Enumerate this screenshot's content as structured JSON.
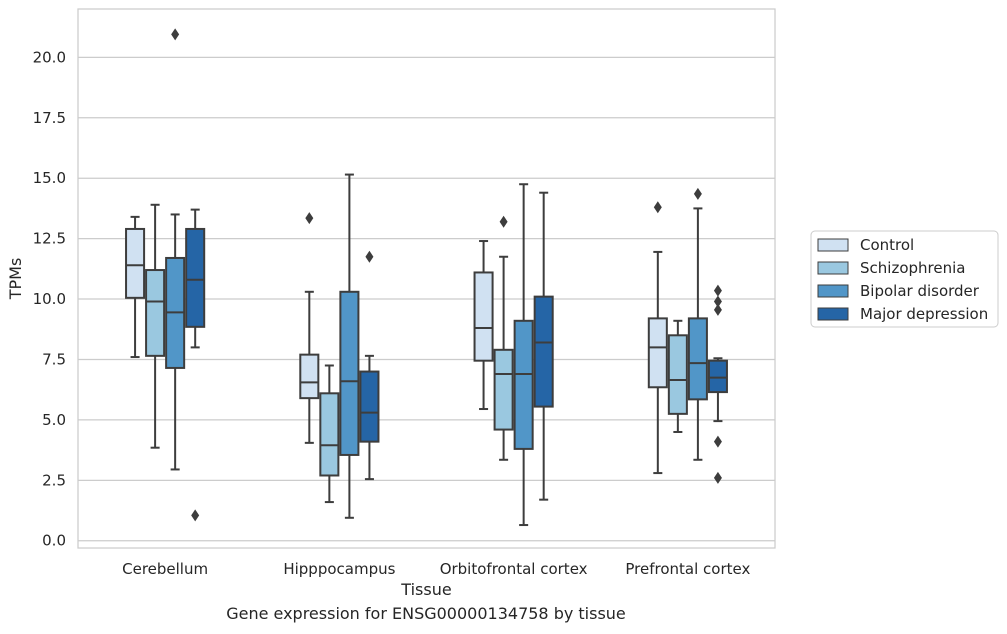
{
  "chart_data": {
    "type": "box",
    "categories": [
      "Cerebellum",
      "Hipppocampus",
      "Orbitofrontal cortex",
      "Prefrontal cortex"
    ],
    "xlabel": "Tissue",
    "ylabel": "TPMs",
    "ylim": [
      -0.3,
      22
    ],
    "yticks": [
      0.0,
      2.5,
      5.0,
      7.5,
      10.0,
      12.5,
      15.0,
      17.5,
      20.0
    ],
    "ytick_labels": [
      "0.0",
      "2.5",
      "5.0",
      "7.5",
      "10.0",
      "12.5",
      "15.0",
      "17.5",
      "20.0"
    ],
    "grid": "horizontal",
    "legend_position": "right",
    "caption": "Gene expression for ENSG00000134758 by tissue",
    "series": [
      {
        "name": "Control",
        "color": "#d0e1f2",
        "boxes": [
          {
            "q1": 10.05,
            "median": 11.4,
            "q3": 12.9,
            "whislo": 7.6,
            "whishi": 13.4,
            "fliers": []
          },
          {
            "q1": 5.9,
            "median": 6.55,
            "q3": 7.7,
            "whislo": 4.05,
            "whishi": 10.3,
            "fliers": [
              13.35
            ]
          },
          {
            "q1": 7.45,
            "median": 8.8,
            "q3": 11.1,
            "whislo": 5.45,
            "whishi": 12.4,
            "fliers": []
          },
          {
            "q1": 6.35,
            "median": 8.0,
            "q3": 9.2,
            "whislo": 2.8,
            "whishi": 11.95,
            "fliers": [
              13.8
            ]
          }
        ]
      },
      {
        "name": "Schizophrenia",
        "color": "#9ac8e0",
        "boxes": [
          {
            "q1": 7.65,
            "median": 9.9,
            "q3": 11.2,
            "whislo": 3.85,
            "whishi": 13.9,
            "fliers": []
          },
          {
            "q1": 2.7,
            "median": 3.95,
            "q3": 6.1,
            "whislo": 1.6,
            "whishi": 7.25,
            "fliers": []
          },
          {
            "q1": 4.6,
            "median": 6.9,
            "q3": 7.9,
            "whislo": 3.35,
            "whishi": 11.75,
            "fliers": [
              13.2
            ]
          },
          {
            "q1": 5.25,
            "median": 6.65,
            "q3": 8.5,
            "whislo": 4.5,
            "whishi": 9.1,
            "fliers": []
          }
        ]
      },
      {
        "name": "Bipolar disorder",
        "color": "#5196c8",
        "boxes": [
          {
            "q1": 7.15,
            "median": 9.45,
            "q3": 11.7,
            "whislo": 2.95,
            "whishi": 13.5,
            "fliers": [
              20.95
            ]
          },
          {
            "q1": 3.55,
            "median": 6.6,
            "q3": 10.3,
            "whislo": 0.95,
            "whishi": 15.15,
            "fliers": []
          },
          {
            "q1": 3.8,
            "median": 6.9,
            "q3": 9.1,
            "whislo": 0.65,
            "whishi": 14.75,
            "fliers": []
          },
          {
            "q1": 5.85,
            "median": 7.35,
            "q3": 9.2,
            "whislo": 3.35,
            "whishi": 13.75,
            "fliers": [
              14.35
            ]
          }
        ]
      },
      {
        "name": "Major depression",
        "color": "#2565a6",
        "boxes": [
          {
            "q1": 8.85,
            "median": 10.8,
            "q3": 12.9,
            "whislo": 8.0,
            "whishi": 13.7,
            "fliers": [
              1.05
            ]
          },
          {
            "q1": 4.1,
            "median": 5.3,
            "q3": 7.0,
            "whislo": 2.55,
            "whishi": 7.65,
            "fliers": [
              11.75
            ]
          },
          {
            "q1": 5.55,
            "median": 8.2,
            "q3": 10.1,
            "whislo": 1.7,
            "whishi": 14.4,
            "fliers": []
          },
          {
            "q1": 6.15,
            "median": 6.75,
            "q3": 7.45,
            "whislo": 4.95,
            "whishi": 7.55,
            "fliers": [
              2.6,
              4.1,
              9.55,
              9.9,
              10.35
            ]
          }
        ]
      }
    ]
  }
}
